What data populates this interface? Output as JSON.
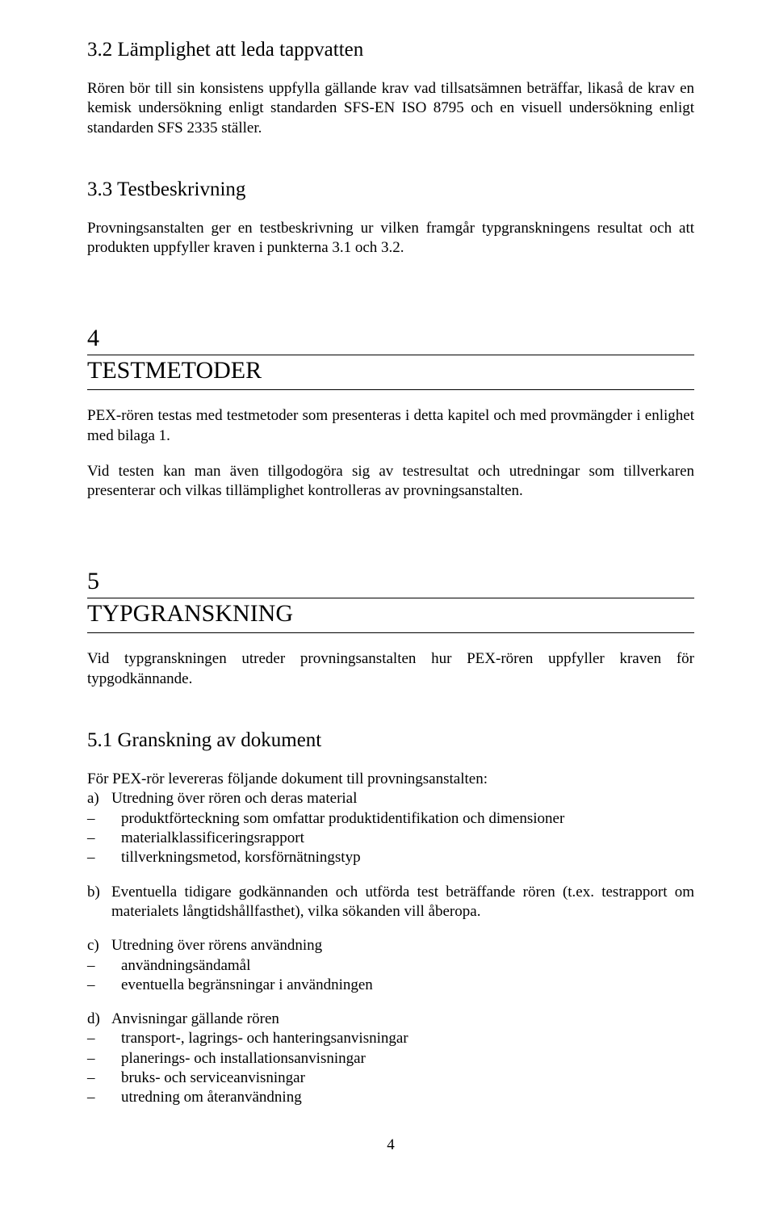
{
  "s32": {
    "heading": "3.2  Lämplighet att leda tappvatten",
    "para": "Rören bör till sin konsistens uppfylla gällande krav vad tillsatsämnen beträffar, likaså de krav en kemisk undersökning enligt standarden SFS-EN ISO 8795 och en visuell undersökning enligt standarden SFS 2335 ställer."
  },
  "s33": {
    "heading": "3.3  Testbeskrivning",
    "para": "Provningsanstalten ger en testbeskrivning ur vilken framgår typgranskningens resultat och att produkten uppfyller kraven i punkterna 3.1 och 3.2."
  },
  "s4": {
    "num": "4",
    "title": "TESTMETODER",
    "p1": "PEX-rören testas med testmetoder som presenteras i detta kapitel och med provmängder i enlighet med bilaga 1.",
    "p2": "Vid testen kan man även tillgodogöra sig av testresultat och utredningar som tillverkaren presenterar och vilkas tillämplighet kontrolleras av provningsanstalten."
  },
  "s5": {
    "num": "5",
    "title": "TYPGRANSKNING",
    "p1": "Vid typgranskningen utreder provningsanstalten hur PEX-rören uppfyller kraven för typgodkännande."
  },
  "s51": {
    "heading": "5.1  Granskning av dokument",
    "intro": "För PEX-rör levereras följande dokument till provningsanstalten:",
    "a": {
      "marker": "a)",
      "text": "Utredning över rören och deras material",
      "items": [
        "produktförteckning som omfattar produktidentifikation och dimensioner",
        "materialklassificeringsrapport",
        "tillverkningsmetod, korsförnätningstyp"
      ]
    },
    "b": {
      "marker": "b)",
      "text": "Eventuella tidigare godkännanden och utförda test beträffande rören (t.ex. testrapport om materialets långtidshållfasthet), vilka sökanden vill åberopa."
    },
    "c": {
      "marker": "c)",
      "text": "Utredning över rörens användning",
      "items": [
        "användningsändamål",
        "eventuella begränsningar i användningen"
      ]
    },
    "d": {
      "marker": "d)",
      "text": "Anvisningar gällande rören",
      "items": [
        "transport-, lagrings- och hanteringsanvisningar",
        "planerings- och installationsanvisningar",
        "bruks- och serviceanvisningar",
        "utredning om återanvändning"
      ]
    }
  },
  "page_number": "4",
  "dash": "–"
}
